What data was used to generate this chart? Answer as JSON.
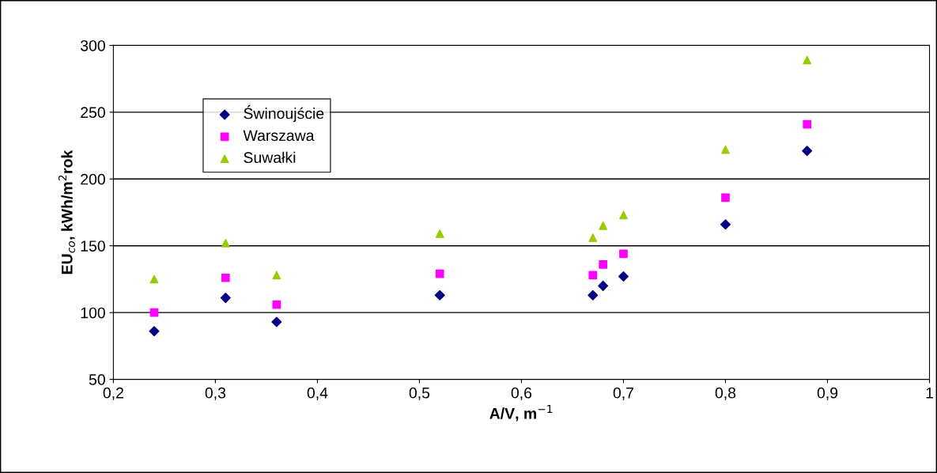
{
  "chart_data": {
    "type": "scatter",
    "xlabel": "A/V, m$^{−1}$",
    "ylabel": "EU$_{co}$, kWh/m$^{2}$rok",
    "x": [
      0.24,
      0.31,
      0.36,
      0.52,
      0.67,
      0.68,
      0.7,
      0.8,
      0.88
    ],
    "series": [
      {
        "name": "Świnoujście",
        "color": "#000080",
        "marker": "diamond",
        "values": [
          86,
          111,
          93,
          113,
          113,
          120,
          127,
          166,
          221
        ]
      },
      {
        "name": "Warszawa",
        "color": "#ff00ff",
        "marker": "square",
        "values": [
          100,
          126,
          106,
          129,
          128,
          136,
          144,
          186,
          241
        ]
      },
      {
        "name": "Suwałki",
        "color": "#99cc00",
        "marker": "triangle",
        "values": [
          125,
          152,
          128,
          159,
          156,
          165,
          173,
          222,
          289
        ]
      }
    ],
    "xlim": [
      0.2,
      1
    ],
    "ylim": [
      50,
      300
    ],
    "xticks": [
      {
        "value": 0.2,
        "label": "0,2"
      },
      {
        "value": 0.3,
        "label": "0,3"
      },
      {
        "value": 0.4,
        "label": "0,4"
      },
      {
        "value": 0.5,
        "label": "0,5"
      },
      {
        "value": 0.6,
        "label": "0,6"
      },
      {
        "value": 0.7,
        "label": "0,7"
      },
      {
        "value": 0.8,
        "label": "0,8"
      },
      {
        "value": 0.9,
        "label": "0,9"
      },
      {
        "value": 1,
        "label": "1"
      }
    ],
    "yticks": [
      50,
      100,
      150,
      200,
      250,
      300
    ],
    "grid": "y",
    "legend": "top left"
  }
}
